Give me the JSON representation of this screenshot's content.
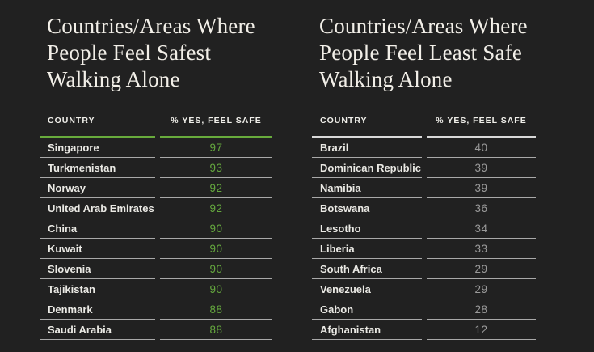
{
  "colors": {
    "background": "#212121",
    "title_text": "#f2efe8",
    "header_label": "#f0efea",
    "country_text": "#eae9e4",
    "row_line": "#a9a9a9",
    "green_accent": "#65a83e",
    "gray_value": "#9b9b9b",
    "gray_rule": "#d8d8d8"
  },
  "chart_data": [
    {
      "type": "table",
      "title": "Countries/Areas Where People Feel Safest Walking Alone",
      "title_lines": [
        "Countries/Areas Where",
        "People Feel Safest",
        "Walking Alone"
      ],
      "columns": [
        "COUNTRY",
        "% YES, FEEL SAFE"
      ],
      "value_color": "#65a83e",
      "rule_color": "#68ab3c",
      "rows": [
        {
          "country": "Singapore",
          "value": 97
        },
        {
          "country": "Turkmenistan",
          "value": 93
        },
        {
          "country": "Norway",
          "value": 92
        },
        {
          "country": "United Arab Emirates",
          "value": 92
        },
        {
          "country": "China",
          "value": 90
        },
        {
          "country": "Kuwait",
          "value": 90
        },
        {
          "country": "Slovenia",
          "value": 90
        },
        {
          "country": "Tajikistan",
          "value": 90
        },
        {
          "country": "Denmark",
          "value": 88
        },
        {
          "country": "Saudi Arabia",
          "value": 88
        }
      ]
    },
    {
      "type": "table",
      "title": "Countries/Areas Where People Feel Least Safe Walking Alone",
      "title_lines": [
        "Countries/Areas Where",
        "People Feel Least Safe",
        "Walking Alone"
      ],
      "columns": [
        "COUNTRY",
        "% YES, FEEL SAFE"
      ],
      "value_color": "#9b9b9b",
      "rule_color": "#d8d8d8",
      "rows": [
        {
          "country": "Brazil",
          "value": 40
        },
        {
          "country": "Dominican Republic",
          "value": 39
        },
        {
          "country": "Namibia",
          "value": 39
        },
        {
          "country": "Botswana",
          "value": 36
        },
        {
          "country": "Lesotho",
          "value": 34
        },
        {
          "country": "Liberia",
          "value": 33
        },
        {
          "country": "South Africa",
          "value": 29
        },
        {
          "country": "Venezuela",
          "value": 29
        },
        {
          "country": "Gabon",
          "value": 28
        },
        {
          "country": "Afghanistan",
          "value": 12
        }
      ]
    }
  ]
}
